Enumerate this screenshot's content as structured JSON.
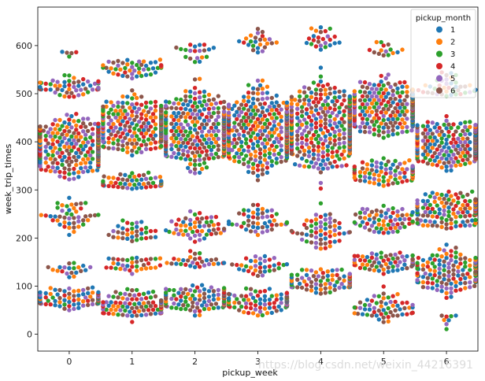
{
  "chart_data": {
    "type": "scatter",
    "subtype": "swarm",
    "title": "",
    "xlabel": "pickup_week",
    "ylabel": "week_trip_times",
    "categories": [
      "0",
      "1",
      "2",
      "3",
      "4",
      "5",
      "6"
    ],
    "ylim": [
      -35,
      680
    ],
    "yticks": [
      0,
      100,
      200,
      300,
      400,
      500,
      600
    ],
    "grid": false,
    "legend": {
      "title": "pickup_month",
      "placement": "top-right",
      "entries": [
        {
          "label": "1",
          "color": "#1f77b4"
        },
        {
          "label": "2",
          "color": "#ff7f0e"
        },
        {
          "label": "3",
          "color": "#2ca02c"
        },
        {
          "label": "4",
          "color": "#d62728"
        },
        {
          "label": "5",
          "color": "#9467bd"
        },
        {
          "label": "6",
          "color": "#8c564b"
        }
      ]
    },
    "distribution_by_week": [
      {
        "week": "0",
        "clusters": [
          [
            40,
            110,
            90
          ],
          [
            115,
            160,
            20
          ],
          [
            180,
            300,
            45
          ],
          [
            300,
            480,
            380
          ],
          [
            480,
            545,
            55
          ],
          [
            560,
            605,
            5
          ]
        ]
      },
      {
        "week": "1",
        "clusters": [
          [
            20,
            110,
            110
          ],
          [
            110,
            180,
            35
          ],
          [
            180,
            250,
            35
          ],
          [
            280,
            350,
            60
          ],
          [
            350,
            520,
            400
          ],
          [
            520,
            590,
            50
          ]
        ]
      },
      {
        "week": "2",
        "clusters": [
          [
            30,
            120,
            120
          ],
          [
            120,
            180,
            30
          ],
          [
            180,
            270,
            55
          ],
          [
            300,
            550,
            420
          ],
          [
            550,
            625,
            20
          ]
        ]
      },
      {
        "week": "3",
        "clusters": [
          [
            25,
            110,
            115
          ],
          [
            110,
            180,
            35
          ],
          [
            190,
            280,
            50
          ],
          [
            290,
            560,
            440
          ],
          [
            560,
            655,
            25
          ]
        ]
      },
      {
        "week": "4",
        "clusters": [
          [
            70,
            150,
            120
          ],
          [
            160,
            280,
            60
          ],
          [
            290,
            570,
            480
          ],
          [
            570,
            660,
            25
          ]
        ]
      },
      {
        "week": "5",
        "clusters": [
          [
            0,
            110,
            60
          ],
          [
            110,
            190,
            70
          ],
          [
            190,
            290,
            70
          ],
          [
            290,
            380,
            100
          ],
          [
            380,
            560,
            380
          ],
          [
            560,
            620,
            15
          ]
        ]
      },
      {
        "week": "6",
        "clusters": [
          [
            0,
            60,
            8
          ],
          [
            60,
            200,
            170
          ],
          [
            200,
            320,
            160
          ],
          [
            320,
            470,
            380
          ],
          [
            470,
            560,
            40
          ]
        ]
      }
    ]
  },
  "watermark": "https://blog.csdn.net/weixin_44216391"
}
